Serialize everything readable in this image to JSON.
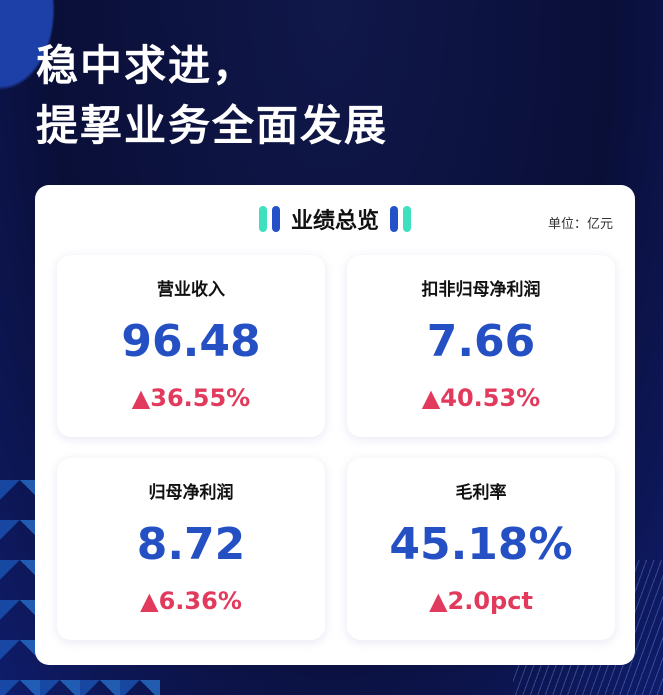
{
  "title": {
    "line1": "稳中求进，",
    "line2": "提挈业务全面发展"
  },
  "panel": {
    "heading": "业绩总览",
    "unit": "单位：亿元"
  },
  "colors": {
    "value": "#2550c4",
    "change": "#e23a5c",
    "accent_teal": "#3ee0c0",
    "accent_blue": "#2450c8"
  },
  "metrics": [
    {
      "label": "营业收入",
      "value": "96.48",
      "change": "▲36.55%"
    },
    {
      "label": "扣非归母净利润",
      "value": "7.66",
      "change": "▲40.53%"
    },
    {
      "label": "归母净利润",
      "value": "8.72",
      "change": "▲6.36%"
    },
    {
      "label": "毛利率",
      "value": "45.18%",
      "change": "▲2.0pct"
    }
  ]
}
